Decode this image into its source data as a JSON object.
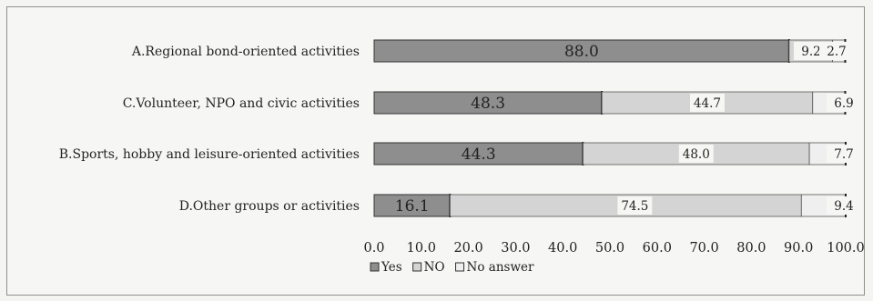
{
  "chart_data": {
    "type": "bar",
    "orientation": "horizontal",
    "stacked": true,
    "categories": [
      "A.Regional bond-oriented activities",
      "C.Volunteer, NPO and civic activities",
      "B.Sports, hobby and leisure-oriented activities",
      "D.Other groups or activities"
    ],
    "series": [
      {
        "name": "Yes",
        "values": [
          88.0,
          48.3,
          44.3,
          16.1
        ],
        "color": "#8e8e8e"
      },
      {
        "name": "NO",
        "values": [
          9.2,
          44.7,
          48.0,
          74.5
        ],
        "color": "#d4d4d4"
      },
      {
        "name": "No answer",
        "values": [
          2.7,
          6.9,
          7.7,
          9.4
        ],
        "color": "#efefef"
      }
    ],
    "xlim": [
      0,
      100
    ],
    "xticks": [
      "0.0",
      "10.0",
      "20.0",
      "30.0",
      "40.0",
      "50.0",
      "60.0",
      "70.0",
      "80.0",
      "90.0",
      "100.0"
    ],
    "title": "",
    "xlabel": "",
    "ylabel": "",
    "legend": "bottom-left",
    "grid": false
  }
}
